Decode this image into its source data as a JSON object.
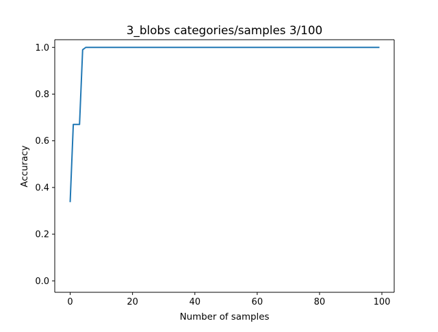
{
  "chart_data": {
    "type": "line",
    "title": "3_blobs categories/samples 3/100",
    "xlabel": "Number of samples",
    "ylabel": "Accuracy",
    "xlim": [
      -4.95,
      103.95
    ],
    "ylim": [
      -0.049,
      1.033
    ],
    "xticks": [
      0,
      20,
      40,
      60,
      80,
      100
    ],
    "xtick_labels": [
      "0",
      "20",
      "40",
      "60",
      "80",
      "100"
    ],
    "yticks": [
      0.0,
      0.2,
      0.4,
      0.6,
      0.8,
      1.0
    ],
    "ytick_labels": [
      "0.0",
      "0.2",
      "0.4",
      "0.6",
      "0.8",
      "1.0"
    ],
    "grid": false,
    "legend": "none",
    "series": [
      {
        "color": "#1f77b4",
        "x": [
          0,
          1,
          2,
          3,
          4,
          5,
          99
        ],
        "y": [
          0.34,
          0.67,
          0.67,
          0.67,
          0.99,
          1.0,
          1.0
        ]
      }
    ]
  }
}
